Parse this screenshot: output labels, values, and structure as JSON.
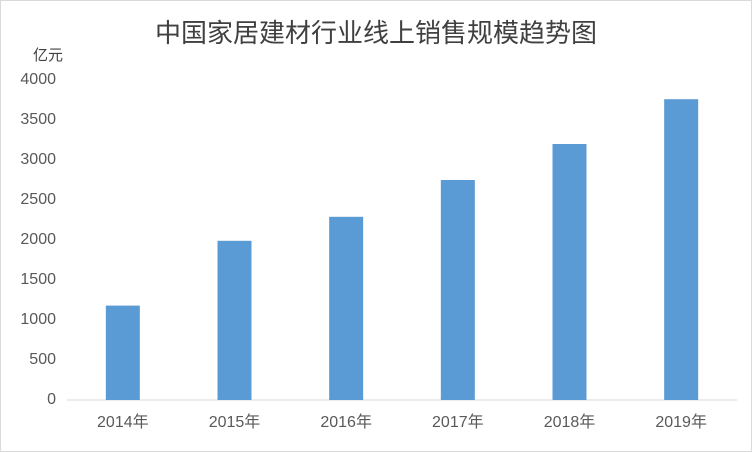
{
  "chart_data": {
    "type": "bar",
    "title": "中国家居建材行业线上销售规模趋势图",
    "y_label": "亿元",
    "categories": [
      "2014年",
      "2015年",
      "2016年",
      "2017年",
      "2018年",
      "2019年"
    ],
    "values": [
      1180,
      1990,
      2290,
      2750,
      3200,
      3760
    ],
    "color": "#5b9bd5",
    "ylim": [
      0,
      4000
    ],
    "yticks": [
      0,
      500,
      1000,
      1500,
      2000,
      2500,
      3000,
      3500,
      4000
    ],
    "grid": false
  }
}
